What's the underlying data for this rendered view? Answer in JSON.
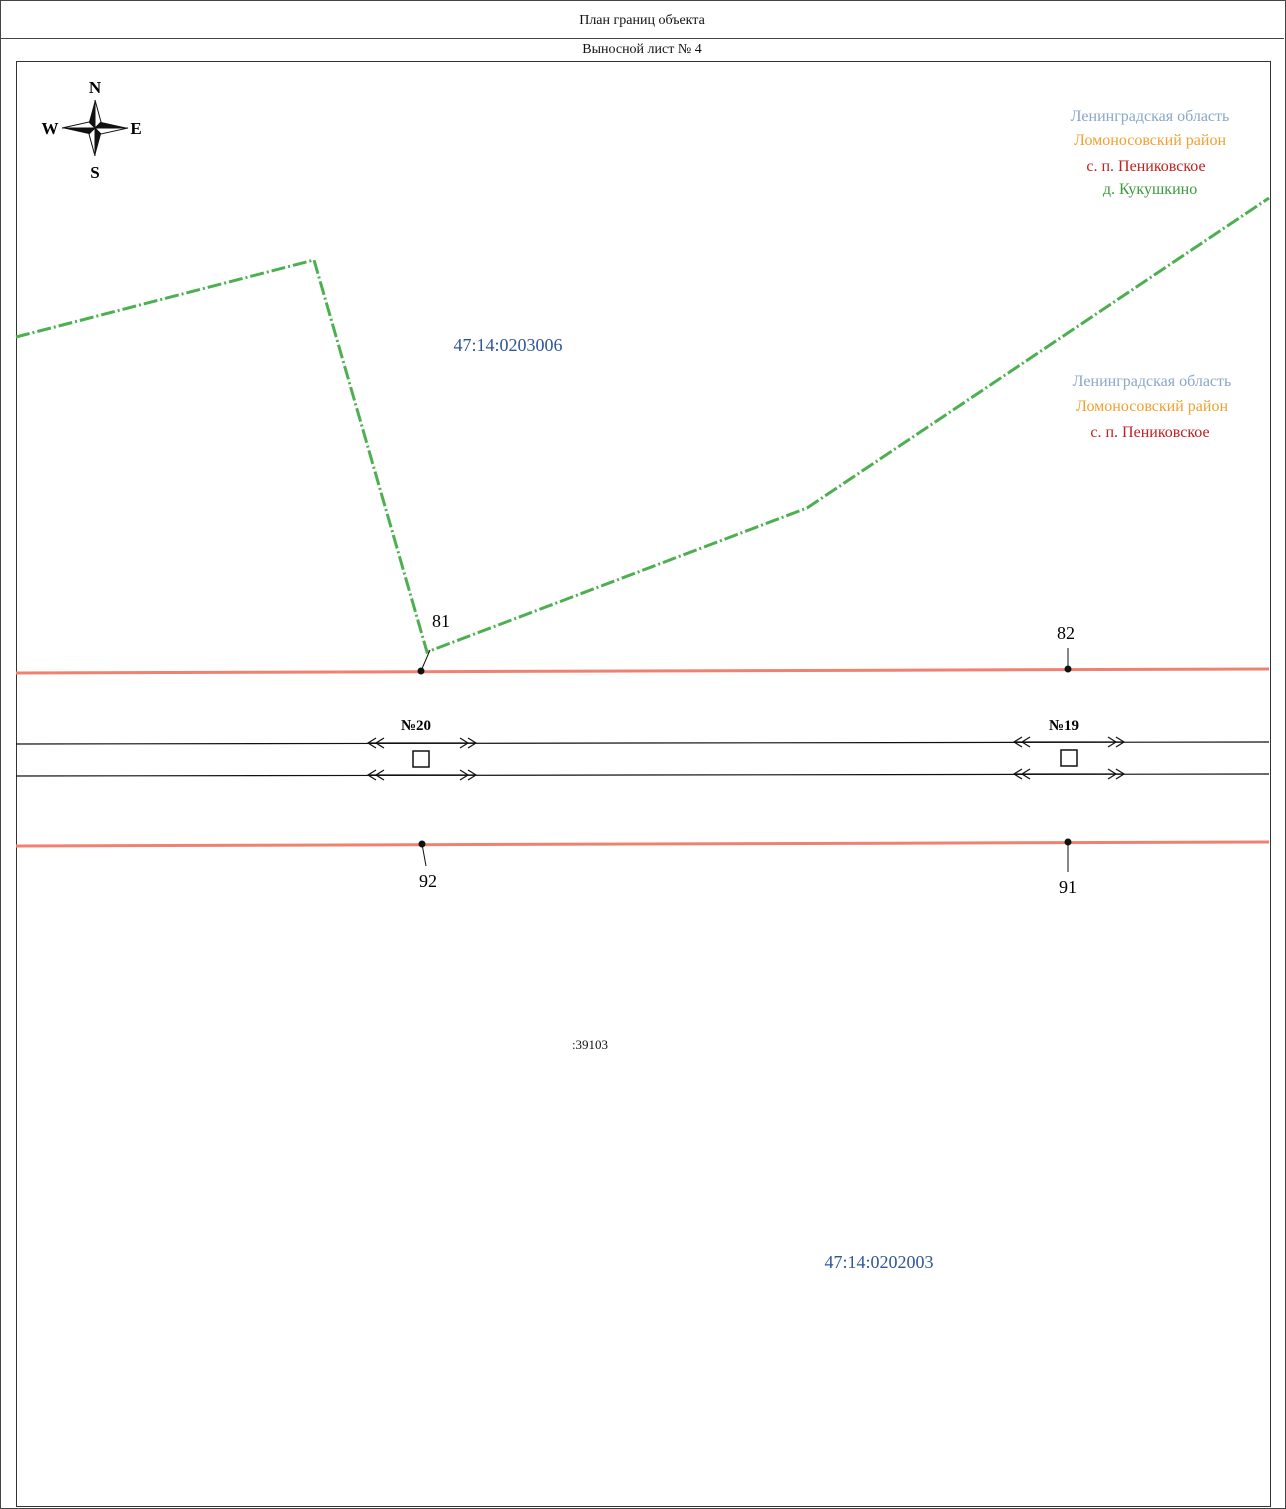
{
  "header": {
    "title": "План границ объекта",
    "sheet": "Выносной лист № 4"
  },
  "compass": {
    "n": "N",
    "s": "S",
    "w": "W",
    "e": "E"
  },
  "region_top": {
    "oblast": "Ленинградская область",
    "rayon": "Ломоносовский район",
    "settlement": "с. п. Пениковское",
    "village": "д. Кукушкино"
  },
  "region_mid": {
    "oblast": "Ленинградская область",
    "rayon": "Ломоносовский район",
    "settlement": "с. п. Пениковское"
  },
  "cadastral": {
    "north": "47:14:0203006",
    "south": "47:14:0202003",
    "parcel": ":39103"
  },
  "points": {
    "p81": "81",
    "p82": "82",
    "p91": "91",
    "p92": "92"
  },
  "markers": {
    "m20": "№20",
    "m19": "№19"
  },
  "colors": {
    "boundary_red": "#f08070",
    "village_green": "#4caf50",
    "oblast_blue": "#8aa6c8",
    "rayon_orange": "#f0a030",
    "settlement_red": "#c02020",
    "cadastral_blue": "#2f5597"
  }
}
